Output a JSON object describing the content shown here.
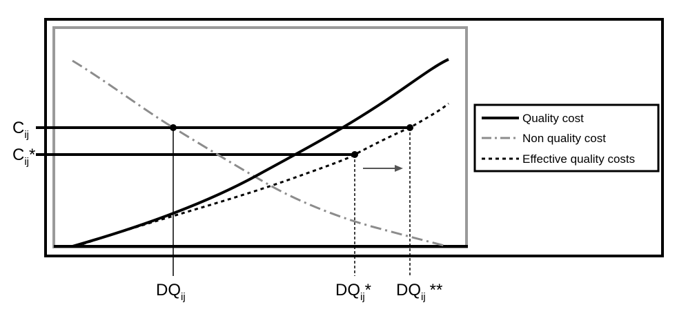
{
  "figure": {
    "y_labels": {
      "c_main": "C",
      "c_sub": "ij",
      "c_star_main": "C",
      "c_star_sub": "ij",
      "c_star_suffix": "*"
    },
    "x_labels": {
      "dq_main": "DQ",
      "dq_sub": "ij",
      "dq_star_main": "DQ",
      "dq_star_sub": "ij",
      "dq_star_suffix": "*",
      "dq_dstar_main": "DQ",
      "dq_dstar_sub": "ij",
      "dq_dstar_suffix": "**"
    },
    "legend": {
      "items": [
        {
          "label": "Quality cost",
          "style": "solid",
          "color": "#000000"
        },
        {
          "label": "Non quality cost",
          "style": "dash-dot",
          "color": "#8c8c8c"
        },
        {
          "label": "Effective quality costs",
          "style": "dotted",
          "color": "#000000"
        }
      ]
    },
    "colors": {
      "frame": "#000000",
      "inner_frame": "#9a9a9a",
      "quality_cost": "#000000",
      "non_quality_cost": "#8c8c8c",
      "effective_quality_costs": "#000000",
      "arrow": "#555555"
    }
  }
}
